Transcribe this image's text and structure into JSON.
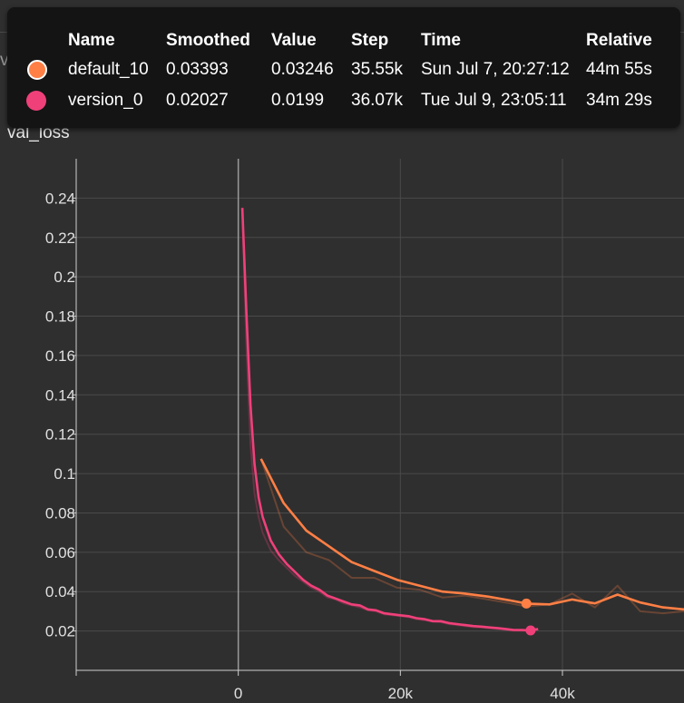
{
  "background_title": "val_loss",
  "chart_title": "val_loss",
  "tooltip": {
    "headers": [
      "Name",
      "Smoothed",
      "Value",
      "Step",
      "Time",
      "Relative"
    ],
    "rows": [
      {
        "name": "default_10",
        "smoothed": "0.03393",
        "value": "0.03246",
        "step": "35.55k",
        "time": "Sun Jul 7, 20:27:12",
        "relative": "44m 55s",
        "color": "#ff7f45"
      },
      {
        "name": "version_0",
        "smoothed": "0.02027",
        "value": "0.0199",
        "step": "36.07k",
        "time": "Tue Jul 9, 23:05:11",
        "relative": "34m 29s",
        "color": "#f0407a"
      }
    ]
  },
  "chart_data": {
    "type": "line",
    "title": "val_loss",
    "xlabel": "",
    "ylabel": "",
    "xlim": [
      -20000,
      55000
    ],
    "ylim": [
      0,
      0.26
    ],
    "x_ticks": [
      0,
      20000,
      40000
    ],
    "x_tick_labels": [
      "0",
      "20k",
      "40k"
    ],
    "y_ticks": [
      0.02,
      0.04,
      0.06,
      0.08,
      0.1,
      0.12,
      0.14,
      0.16,
      0.18,
      0.2,
      0.22,
      0.24
    ],
    "y_tick_labels": [
      "0.02",
      "0.04",
      "0.06",
      "0.08",
      "0.1",
      "0.12",
      "0.14",
      "0.16",
      "0.18",
      "0.2",
      "0.22",
      "0.24"
    ],
    "grid": true,
    "series": [
      {
        "name": "default_10",
        "color": "#ff7f45",
        "smoothed": [
          [
            2800,
            0.1075
          ],
          [
            5600,
            0.085
          ],
          [
            8400,
            0.071
          ],
          [
            11200,
            0.063
          ],
          [
            14000,
            0.055
          ],
          [
            16800,
            0.0505
          ],
          [
            19600,
            0.046
          ],
          [
            22400,
            0.043
          ],
          [
            25200,
            0.04
          ],
          [
            28000,
            0.039
          ],
          [
            30800,
            0.0375
          ],
          [
            33600,
            0.0355
          ],
          [
            35550,
            0.03393
          ],
          [
            38400,
            0.0335
          ],
          [
            41200,
            0.036
          ],
          [
            44000,
            0.034
          ],
          [
            46800,
            0.0385
          ],
          [
            49600,
            0.0345
          ],
          [
            52400,
            0.032
          ],
          [
            55000,
            0.031
          ]
        ],
        "raw": [
          [
            2800,
            0.1075
          ],
          [
            5600,
            0.073
          ],
          [
            8400,
            0.06
          ],
          [
            11200,
            0.056
          ],
          [
            14000,
            0.047
          ],
          [
            16800,
            0.047
          ],
          [
            19600,
            0.042
          ],
          [
            22400,
            0.041
          ],
          [
            25200,
            0.037
          ],
          [
            28000,
            0.038
          ],
          [
            30800,
            0.036
          ],
          [
            33600,
            0.034
          ],
          [
            35550,
            0.03246
          ],
          [
            38400,
            0.0335
          ],
          [
            41200,
            0.039
          ],
          [
            44000,
            0.032
          ],
          [
            46800,
            0.043
          ],
          [
            49600,
            0.03
          ],
          [
            52400,
            0.029
          ],
          [
            55000,
            0.03
          ]
        ],
        "marker": {
          "x": 35550,
          "y": 0.03393
        }
      },
      {
        "name": "version_0",
        "color": "#f0407a",
        "smoothed": [
          [
            500,
            0.235
          ],
          [
            1000,
            0.182
          ],
          [
            1500,
            0.135
          ],
          [
            2000,
            0.105
          ],
          [
            2500,
            0.088
          ],
          [
            3000,
            0.078
          ],
          [
            4000,
            0.066
          ],
          [
            5000,
            0.059
          ],
          [
            6000,
            0.054
          ],
          [
            7000,
            0.05
          ],
          [
            8000,
            0.046
          ],
          [
            9000,
            0.043
          ],
          [
            10000,
            0.041
          ],
          [
            11000,
            0.038
          ],
          [
            12000,
            0.0365
          ],
          [
            13000,
            0.035
          ],
          [
            14000,
            0.0335
          ],
          [
            15000,
            0.033
          ],
          [
            16000,
            0.031
          ],
          [
            17000,
            0.0305
          ],
          [
            18000,
            0.029
          ],
          [
            19000,
            0.0285
          ],
          [
            20000,
            0.028
          ],
          [
            21000,
            0.0275
          ],
          [
            22000,
            0.0265
          ],
          [
            23000,
            0.026
          ],
          [
            24000,
            0.025
          ],
          [
            25000,
            0.025
          ],
          [
            26000,
            0.024
          ],
          [
            27000,
            0.0235
          ],
          [
            28000,
            0.023
          ],
          [
            29000,
            0.0225
          ],
          [
            30000,
            0.0222
          ],
          [
            31000,
            0.0218
          ],
          [
            32000,
            0.0215
          ],
          [
            33000,
            0.021
          ],
          [
            34000,
            0.0205
          ],
          [
            35000,
            0.0205
          ],
          [
            36070,
            0.02027
          ],
          [
            37000,
            0.021
          ]
        ],
        "raw": [
          [
            500,
            0.235
          ],
          [
            1000,
            0.165
          ],
          [
            1500,
            0.115
          ],
          [
            2000,
            0.09
          ],
          [
            2500,
            0.078
          ],
          [
            3000,
            0.07
          ],
          [
            4000,
            0.061
          ],
          [
            5000,
            0.056
          ],
          [
            6000,
            0.052
          ],
          [
            7000,
            0.048
          ],
          [
            8000,
            0.045
          ],
          [
            9000,
            0.042
          ],
          [
            10000,
            0.04
          ],
          [
            11000,
            0.037
          ],
          [
            12000,
            0.036
          ],
          [
            13000,
            0.034
          ],
          [
            14000,
            0.033
          ],
          [
            15000,
            0.032
          ],
          [
            16000,
            0.0305
          ],
          [
            17000,
            0.03
          ],
          [
            18000,
            0.0285
          ],
          [
            19000,
            0.028
          ],
          [
            20000,
            0.0275
          ],
          [
            21000,
            0.027
          ],
          [
            22000,
            0.026
          ],
          [
            23000,
            0.0255
          ],
          [
            24000,
            0.0248
          ],
          [
            25000,
            0.0245
          ],
          [
            26000,
            0.0235
          ],
          [
            27000,
            0.023
          ],
          [
            28000,
            0.0225
          ],
          [
            29000,
            0.022
          ],
          [
            30000,
            0.0218
          ],
          [
            31000,
            0.0214
          ],
          [
            32000,
            0.021
          ],
          [
            33000,
            0.0206
          ],
          [
            34000,
            0.0202
          ],
          [
            35000,
            0.0201
          ],
          [
            36070,
            0.0199
          ],
          [
            37000,
            0.0207
          ]
        ],
        "marker": {
          "x": 36070,
          "y": 0.02027
        }
      }
    ]
  }
}
